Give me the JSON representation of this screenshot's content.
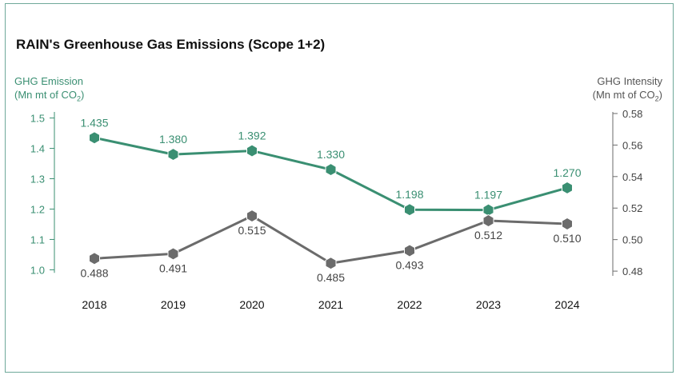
{
  "colors": {
    "green": "#3a8f72",
    "gray": "#6b6b6b",
    "frame": "#6fa99a"
  },
  "chart_data": {
    "type": "line",
    "title": "RAIN's Greenhouse Gas Emissions (Scope 1+2)",
    "categories": [
      "2018",
      "2019",
      "2020",
      "2021",
      "2022",
      "2023",
      "2024"
    ],
    "left_axis": {
      "label": "GHG Emission",
      "unit_prefix": "(Mn mt of CO",
      "unit_sub": "2",
      "unit_suffix": ")",
      "ylim": [
        0.98,
        1.52
      ],
      "ticks": [
        "1.0",
        "1.1",
        "1.2",
        "1.3",
        "1.4",
        "1.5"
      ]
    },
    "right_axis": {
      "label": "GHG Intensity",
      "unit_prefix": "(Mn mt of CO",
      "unit_sub": "2",
      "unit_suffix": ")",
      "ylim": [
        0.477,
        0.581
      ],
      "ticks": [
        "0.48",
        "0.50",
        "0.52",
        "0.54",
        "0.56",
        "0.58"
      ]
    },
    "series": [
      {
        "axis": "left",
        "color": "#3a8f72",
        "values": [
          1.435,
          1.38,
          1.392,
          1.33,
          1.198,
          1.197,
          1.27
        ],
        "labels": [
          "1.435",
          "1.380",
          "1.392",
          "1.330",
          "1.198",
          "1.197",
          "1.270"
        ]
      },
      {
        "axis": "right",
        "color": "#6b6b6b",
        "values": [
          0.488,
          0.491,
          0.515,
          0.485,
          0.493,
          0.512,
          0.51
        ],
        "labels": [
          "0.488",
          "0.491",
          "0.515",
          "0.485",
          "0.493",
          "0.512",
          "0.510"
        ]
      }
    ]
  }
}
